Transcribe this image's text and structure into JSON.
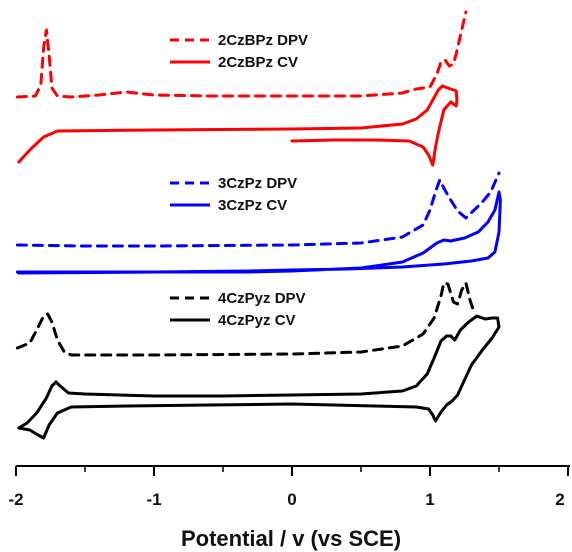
{
  "chart_data": {
    "type": "line",
    "title": "",
    "xlabel": "Potential / v (vs SCE)",
    "ylabel": "",
    "xlim": [
      -2,
      2
    ],
    "x_ticks": [
      "-2",
      "-1",
      "0",
      "1",
      "2"
    ],
    "grid": false,
    "legend": [
      {
        "group": "2CzBPz",
        "entries": [
          {
            "label": "2CzBPz DPV",
            "style": "dashed",
            "color": "#ff0000"
          },
          {
            "label": "2CzBPz CV",
            "style": "solid",
            "color": "#ff0000"
          }
        ]
      },
      {
        "group": "3CzPz",
        "entries": [
          {
            "label": "3CzPz DPV",
            "style": "dashed",
            "color": "#0000ff"
          },
          {
            "label": "3CzPz CV",
            "style": "solid",
            "color": "#0000ff"
          }
        ]
      },
      {
        "group": "4CzPyz",
        "entries": [
          {
            "label": "4CzPyz DPV",
            "style": "dashed",
            "color": "#000000"
          },
          {
            "label": "4CzPyz CV",
            "style": "solid",
            "color": "#000000"
          }
        ]
      }
    ],
    "series": [
      {
        "name": "2CzBPz DPV",
        "color": "#ff0000",
        "dash": true,
        "points": [
          [
            -1.99,
            97
          ],
          [
            -1.86,
            96
          ],
          [
            -1.82,
            85
          ],
          [
            -1.8,
            48
          ],
          [
            -1.78,
            30
          ],
          [
            -1.76,
            55
          ],
          [
            -1.74,
            88
          ],
          [
            -1.7,
            96
          ],
          [
            -1.6,
            97
          ],
          [
            -1.4,
            95
          ],
          [
            -1.2,
            92
          ],
          [
            -1.0,
            95
          ],
          [
            -0.6,
            96
          ],
          [
            0.0,
            96
          ],
          [
            0.5,
            96
          ],
          [
            0.8,
            93
          ],
          [
            0.9,
            89
          ],
          [
            1.0,
            87
          ],
          [
            1.05,
            74
          ],
          [
            1.08,
            62
          ],
          [
            1.11,
            60
          ],
          [
            1.14,
            66
          ],
          [
            1.17,
            64
          ],
          [
            1.2,
            48
          ],
          [
            1.23,
            30
          ],
          [
            1.26,
            12
          ]
        ]
      },
      {
        "name": "2CzBPz CV",
        "color": "#ff0000",
        "dash": false,
        "points": [
          [
            -1.98,
            162
          ],
          [
            -1.9,
            150
          ],
          [
            -1.8,
            137
          ],
          [
            -1.7,
            131
          ],
          [
            -1.0,
            130
          ],
          [
            0.0,
            129
          ],
          [
            0.5,
            128
          ],
          [
            0.8,
            124
          ],
          [
            0.9,
            119
          ],
          [
            0.98,
            110
          ],
          [
            1.02,
            100
          ],
          [
            1.06,
            90
          ],
          [
            1.09,
            86
          ],
          [
            1.13,
            88
          ],
          [
            1.17,
            90
          ],
          [
            1.19,
            91
          ],
          [
            1.195,
            100
          ],
          [
            1.19,
            106
          ],
          [
            1.15,
            102
          ],
          [
            1.1,
            110
          ],
          [
            1.06,
            133
          ],
          [
            1.04,
            147
          ],
          [
            1.02,
            165
          ],
          [
            0.99,
            155
          ],
          [
            0.95,
            147
          ],
          [
            0.85,
            141
          ],
          [
            0.6,
            140
          ],
          [
            0.3,
            140
          ],
          [
            0.0,
            141
          ]
        ]
      },
      {
        "name": "3CzPz DPV",
        "color": "#0000ff",
        "dash": true,
        "points": [
          [
            -1.99,
            245
          ],
          [
            -1.5,
            246
          ],
          [
            -1.0,
            246
          ],
          [
            0.0,
            245
          ],
          [
            0.5,
            243
          ],
          [
            0.8,
            237
          ],
          [
            0.95,
            225
          ],
          [
            1.0,
            210
          ],
          [
            1.04,
            192
          ],
          [
            1.07,
            180
          ],
          [
            1.1,
            188
          ],
          [
            1.15,
            200
          ],
          [
            1.2,
            211
          ],
          [
            1.26,
            218
          ],
          [
            1.32,
            210
          ],
          [
            1.38,
            202
          ],
          [
            1.44,
            192
          ],
          [
            1.5,
            173
          ]
        ]
      },
      {
        "name": "3CzPz CV",
        "color": "#0000ff",
        "dash": false,
        "points": [
          [
            -1.99,
            272
          ],
          [
            -1.0,
            272
          ],
          [
            -0.3,
            272
          ],
          [
            0.0,
            271
          ],
          [
            0.5,
            268
          ],
          [
            0.8,
            262
          ],
          [
            0.95,
            253
          ],
          [
            1.05,
            243
          ],
          [
            1.1,
            240
          ],
          [
            1.15,
            241
          ],
          [
            1.25,
            238
          ],
          [
            1.35,
            232
          ],
          [
            1.42,
            222
          ],
          [
            1.47,
            210
          ],
          [
            1.5,
            192
          ],
          [
            1.51,
            200
          ],
          [
            1.5,
            232
          ],
          [
            1.47,
            252
          ],
          [
            1.42,
            258
          ],
          [
            1.3,
            261
          ],
          [
            1.1,
            264
          ],
          [
            0.8,
            267
          ],
          [
            0.4,
            269
          ],
          [
            0.0,
            270
          ],
          [
            -0.3,
            271
          ],
          [
            -1.0,
            272
          ],
          [
            -1.98,
            273
          ]
        ]
      },
      {
        "name": "4CzPyz DPV",
        "color": "#000000",
        "dash": true,
        "points": [
          [
            -1.99,
            348
          ],
          [
            -1.9,
            343
          ],
          [
            -1.85,
            330
          ],
          [
            -1.8,
            316
          ],
          [
            -1.77,
            314
          ],
          [
            -1.74,
            322
          ],
          [
            -1.7,
            340
          ],
          [
            -1.65,
            352
          ],
          [
            -1.6,
            355
          ],
          [
            -1.0,
            355
          ],
          [
            0.0,
            354
          ],
          [
            0.5,
            352
          ],
          [
            0.8,
            346
          ],
          [
            0.95,
            334
          ],
          [
            1.03,
            318
          ],
          [
            1.08,
            296
          ],
          [
            1.1,
            283
          ],
          [
            1.13,
            284
          ],
          [
            1.17,
            302
          ],
          [
            1.2,
            304
          ],
          [
            1.23,
            290
          ],
          [
            1.26,
            283
          ],
          [
            1.29,
            300
          ],
          [
            1.32,
            313
          ]
        ]
      },
      {
        "name": "4CzPyz CV",
        "color": "#000000",
        "dash": false,
        "points": [
          [
            -1.98,
            428
          ],
          [
            -1.92,
            423
          ],
          [
            -1.85,
            413
          ],
          [
            -1.78,
            398
          ],
          [
            -1.74,
            386
          ],
          [
            -1.71,
            382
          ],
          [
            -1.68,
            386
          ],
          [
            -1.62,
            393
          ],
          [
            -1.5,
            394
          ],
          [
            -1.0,
            396
          ],
          [
            -0.5,
            396
          ],
          [
            0.0,
            395
          ],
          [
            0.5,
            394
          ],
          [
            0.8,
            391
          ],
          [
            0.9,
            386
          ],
          [
            0.98,
            374
          ],
          [
            1.03,
            358
          ],
          [
            1.08,
            341
          ],
          [
            1.12,
            336
          ],
          [
            1.15,
            336
          ],
          [
            1.18,
            340
          ],
          [
            1.22,
            330
          ],
          [
            1.28,
            322
          ],
          [
            1.34,
            316
          ],
          [
            1.4,
            319
          ],
          [
            1.45,
            318
          ],
          [
            1.49,
            318
          ],
          [
            1.5,
            327
          ],
          [
            1.45,
            338
          ],
          [
            1.38,
            350
          ],
          [
            1.3,
            365
          ],
          [
            1.25,
            380
          ],
          [
            1.2,
            395
          ],
          [
            1.16,
            401
          ],
          [
            1.12,
            405
          ],
          [
            1.08,
            412
          ],
          [
            1.04,
            421
          ],
          [
            1.02,
            415
          ],
          [
            0.99,
            409
          ],
          [
            0.9,
            407
          ],
          [
            0.6,
            406
          ],
          [
            0.0,
            404
          ],
          [
            -0.6,
            405
          ],
          [
            -1.2,
            406
          ],
          [
            -1.6,
            407
          ],
          [
            -1.7,
            413
          ],
          [
            -1.76,
            425
          ],
          [
            -1.8,
            438
          ],
          [
            -1.84,
            435
          ],
          [
            -1.9,
            430
          ],
          [
            -1.98,
            428
          ]
        ]
      }
    ]
  }
}
